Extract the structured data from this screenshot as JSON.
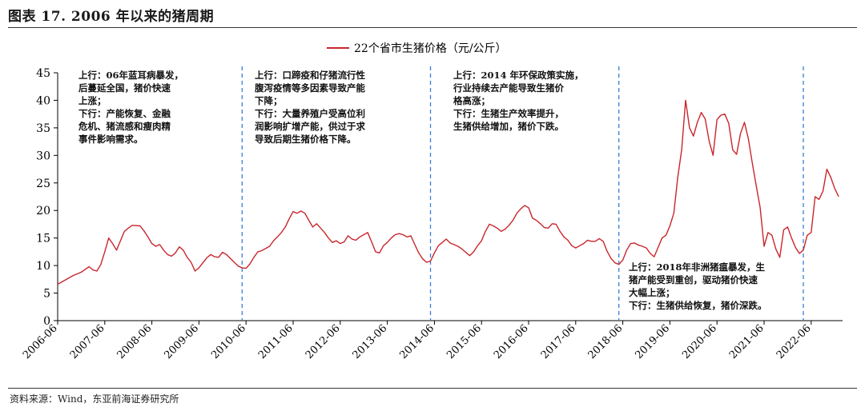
{
  "figure_title": "图表 17. 2006 年以来的猪周期",
  "source": "资料来源：Wind，东亚前海证券研究所",
  "annotations": [
    "上行：06年蓝耳病暴发，\n后蔓延全国，猪价快速\n上涨；\n下行：产能恢复、金融\n危机、猪流感和瘦肉精\n事件影响需求。",
    "上行：口蹄疫和仔猪流行性\n腹泻疫情等多因素导致产能\n下降；\n下行：大量养殖户受高位利\n润影响扩增产能，供过于求\n导致后期生猪价格下降。",
    "上行：2014 年环保政策实施，\n行业持续去产能导致生猪价\n格高涨；\n下行：生猪生产效率提升，\n生猪供给增加，猪价下跌。",
    "上行：2018年非洲猪瘟暴发，生\n猪产能受到重创，驱动猪价快速\n大幅上涨；\n下行：生猪供给恢复，猪价深跌。"
  ],
  "chart_data": {
    "type": "line",
    "title": "",
    "xlabel": "",
    "ylabel": "",
    "ylim": [
      0,
      45
    ],
    "yticks": [
      0,
      5,
      10,
      15,
      20,
      25,
      30,
      35,
      40,
      45
    ],
    "xlim": [
      "2006-06",
      "2023-02"
    ],
    "x_tick_labels": [
      "2006-06",
      "2007-06",
      "2008-06",
      "2009-06",
      "2010-06",
      "2011-06",
      "2012-06",
      "2013-06",
      "2014-06",
      "2015-06",
      "2016-06",
      "2017-06",
      "2018-06",
      "2019-06",
      "2020-06",
      "2021-06",
      "2022-06"
    ],
    "cycle_dividers": [
      "2010-05",
      "2014-05",
      "2018-05",
      "2022-04"
    ],
    "legend_position": "top-center",
    "grid": false,
    "series_color": "#c9262c",
    "divider_color": "#3b7dd8",
    "series": [
      {
        "name": "22个省市生猪价格（元/公斤）",
        "points": [
          [
            "2006-06",
            6.6
          ],
          [
            "2006-08",
            7.4
          ],
          [
            "2006-10",
            8.2
          ],
          [
            "2006-12",
            8.8
          ],
          [
            "2007-02",
            9.8
          ],
          [
            "2007-03",
            9.2
          ],
          [
            "2007-04",
            9.0
          ],
          [
            "2007-05",
            10.2
          ],
          [
            "2007-06",
            12.5
          ],
          [
            "2007-07",
            15.0
          ],
          [
            "2007-08",
            14.0
          ],
          [
            "2007-09",
            12.8
          ],
          [
            "2007-10",
            14.5
          ],
          [
            "2007-11",
            16.2
          ],
          [
            "2007-12",
            16.8
          ],
          [
            "2008-01",
            17.3
          ],
          [
            "2008-03",
            17.2
          ],
          [
            "2008-04",
            16.3
          ],
          [
            "2008-05",
            15.2
          ],
          [
            "2008-06",
            14.0
          ],
          [
            "2008-07",
            13.5
          ],
          [
            "2008-08",
            13.8
          ],
          [
            "2008-09",
            12.8
          ],
          [
            "2008-10",
            12.0
          ],
          [
            "2008-11",
            11.7
          ],
          [
            "2008-12",
            12.3
          ],
          [
            "2009-01",
            13.4
          ],
          [
            "2009-02",
            12.8
          ],
          [
            "2009-03",
            11.5
          ],
          [
            "2009-04",
            10.6
          ],
          [
            "2009-05",
            9.0
          ],
          [
            "2009-06",
            9.6
          ],
          [
            "2009-07",
            10.5
          ],
          [
            "2009-08",
            11.4
          ],
          [
            "2009-09",
            12.0
          ],
          [
            "2009-10",
            11.6
          ],
          [
            "2009-11",
            11.5
          ],
          [
            "2009-12",
            12.4
          ],
          [
            "2010-01",
            12.0
          ],
          [
            "2010-02",
            11.3
          ],
          [
            "2010-03",
            10.6
          ],
          [
            "2010-04",
            9.9
          ],
          [
            "2010-05",
            9.6
          ],
          [
            "2010-06",
            9.5
          ],
          [
            "2010-07",
            10.3
          ],
          [
            "2010-08",
            11.5
          ],
          [
            "2010-09",
            12.5
          ],
          [
            "2010-10",
            12.7
          ],
          [
            "2010-11",
            13.1
          ],
          [
            "2010-12",
            13.5
          ],
          [
            "2011-01",
            14.5
          ],
          [
            "2011-02",
            15.2
          ],
          [
            "2011-03",
            16.0
          ],
          [
            "2011-04",
            17.0
          ],
          [
            "2011-05",
            18.5
          ],
          [
            "2011-06",
            19.8
          ],
          [
            "2011-07",
            19.5
          ],
          [
            "2011-08",
            19.9
          ],
          [
            "2011-09",
            19.5
          ],
          [
            "2011-10",
            18.2
          ],
          [
            "2011-11",
            17.0
          ],
          [
            "2011-12",
            17.6
          ],
          [
            "2012-01",
            16.8
          ],
          [
            "2012-02",
            16.0
          ],
          [
            "2012-03",
            15.0
          ],
          [
            "2012-04",
            14.2
          ],
          [
            "2012-05",
            14.5
          ],
          [
            "2012-06",
            14.0
          ],
          [
            "2012-07",
            14.3
          ],
          [
            "2012-08",
            15.4
          ],
          [
            "2012-09",
            14.8
          ],
          [
            "2012-10",
            14.6
          ],
          [
            "2012-11",
            15.2
          ],
          [
            "2012-12",
            15.6
          ],
          [
            "2013-01",
            16.0
          ],
          [
            "2013-02",
            14.3
          ],
          [
            "2013-03",
            12.5
          ],
          [
            "2013-04",
            12.3
          ],
          [
            "2013-05",
            13.6
          ],
          [
            "2013-06",
            14.2
          ],
          [
            "2013-07",
            15.0
          ],
          [
            "2013-08",
            15.6
          ],
          [
            "2013-09",
            15.8
          ],
          [
            "2013-10",
            15.6
          ],
          [
            "2013-11",
            15.2
          ],
          [
            "2013-12",
            15.4
          ],
          [
            "2014-01",
            13.8
          ],
          [
            "2014-02",
            12.3
          ],
          [
            "2014-03",
            11.2
          ],
          [
            "2014-04",
            10.6
          ],
          [
            "2014-05",
            10.8
          ],
          [
            "2014-06",
            12.3
          ],
          [
            "2014-07",
            13.6
          ],
          [
            "2014-08",
            14.2
          ],
          [
            "2014-09",
            14.8
          ],
          [
            "2014-10",
            14.1
          ],
          [
            "2014-11",
            13.8
          ],
          [
            "2014-12",
            13.5
          ],
          [
            "2015-01",
            13.0
          ],
          [
            "2015-02",
            12.4
          ],
          [
            "2015-03",
            11.8
          ],
          [
            "2015-04",
            12.5
          ],
          [
            "2015-05",
            13.6
          ],
          [
            "2015-06",
            14.5
          ],
          [
            "2015-07",
            16.2
          ],
          [
            "2015-08",
            17.5
          ],
          [
            "2015-09",
            17.2
          ],
          [
            "2015-10",
            16.8
          ],
          [
            "2015-11",
            16.2
          ],
          [
            "2015-12",
            16.6
          ],
          [
            "2016-01",
            17.3
          ],
          [
            "2016-02",
            18.2
          ],
          [
            "2016-03",
            19.5
          ],
          [
            "2016-04",
            20.3
          ],
          [
            "2016-05",
            20.9
          ],
          [
            "2016-06",
            20.5
          ],
          [
            "2016-07",
            18.6
          ],
          [
            "2016-08",
            18.2
          ],
          [
            "2016-09",
            17.6
          ],
          [
            "2016-10",
            16.9
          ],
          [
            "2016-11",
            16.8
          ],
          [
            "2016-12",
            17.6
          ],
          [
            "2017-01",
            17.5
          ],
          [
            "2017-02",
            16.2
          ],
          [
            "2017-03",
            15.2
          ],
          [
            "2017-04",
            14.6
          ],
          [
            "2017-05",
            13.6
          ],
          [
            "2017-06",
            13.2
          ],
          [
            "2017-07",
            13.6
          ],
          [
            "2017-08",
            14.0
          ],
          [
            "2017-09",
            14.6
          ],
          [
            "2017-10",
            14.4
          ],
          [
            "2017-11",
            14.4
          ],
          [
            "2017-12",
            14.9
          ],
          [
            "2018-01",
            14.4
          ],
          [
            "2018-02",
            12.6
          ],
          [
            "2018-03",
            11.3
          ],
          [
            "2018-04",
            10.5
          ],
          [
            "2018-05",
            10.2
          ],
          [
            "2018-06",
            11.0
          ],
          [
            "2018-07",
            12.8
          ],
          [
            "2018-08",
            14.0
          ],
          [
            "2018-09",
            14.1
          ],
          [
            "2018-10",
            13.7
          ],
          [
            "2018-11",
            13.5
          ],
          [
            "2018-12",
            13.2
          ],
          [
            "2019-01",
            12.2
          ],
          [
            "2019-02",
            11.6
          ],
          [
            "2019-03",
            13.3
          ],
          [
            "2019-04",
            15.0
          ],
          [
            "2019-05",
            15.5
          ],
          [
            "2019-06",
            17.2
          ],
          [
            "2019-07",
            19.5
          ],
          [
            "2019-08",
            26.0
          ],
          [
            "2019-09",
            31.0
          ],
          [
            "2019-10",
            40.0
          ],
          [
            "2019-11",
            35.0
          ],
          [
            "2019-12",
            33.5
          ],
          [
            "2020-01",
            36.0
          ],
          [
            "2020-02",
            37.8
          ],
          [
            "2020-03",
            36.6
          ],
          [
            "2020-04",
            32.6
          ],
          [
            "2020-05",
            30.0
          ],
          [
            "2020-06",
            36.5
          ],
          [
            "2020-07",
            37.3
          ],
          [
            "2020-08",
            37.5
          ],
          [
            "2020-09",
            35.8
          ],
          [
            "2020-10",
            31.0
          ],
          [
            "2020-11",
            30.2
          ],
          [
            "2020-12",
            34.0
          ],
          [
            "2021-01",
            36.0
          ],
          [
            "2021-02",
            33.0
          ],
          [
            "2021-03",
            28.6
          ],
          [
            "2021-04",
            24.5
          ],
          [
            "2021-05",
            20.5
          ],
          [
            "2021-06",
            13.5
          ],
          [
            "2021-07",
            16.0
          ],
          [
            "2021-08",
            15.5
          ],
          [
            "2021-09",
            13.0
          ],
          [
            "2021-10",
            11.5
          ],
          [
            "2021-11",
            16.5
          ],
          [
            "2021-12",
            17.0
          ],
          [
            "2022-01",
            15.0
          ],
          [
            "2022-02",
            13.3
          ],
          [
            "2022-03",
            12.2
          ],
          [
            "2022-04",
            12.8
          ],
          [
            "2022-05",
            15.5
          ],
          [
            "2022-06",
            16.0
          ],
          [
            "2022-07",
            22.5
          ],
          [
            "2022-08",
            22.0
          ],
          [
            "2022-09",
            23.5
          ],
          [
            "2022-10",
            27.5
          ],
          [
            "2022-11",
            26.0
          ],
          [
            "2022-12",
            24.0
          ],
          [
            "2023-01",
            22.5
          ]
        ]
      }
    ]
  }
}
